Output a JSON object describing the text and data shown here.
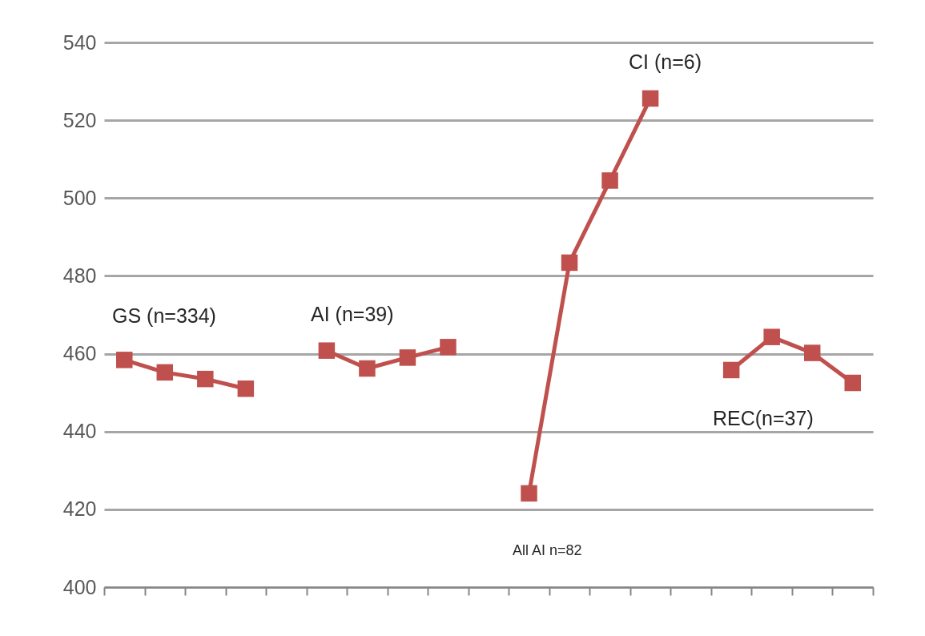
{
  "chart_data": {
    "type": "line",
    "categories": [
      null,
      null,
      null,
      null,
      null,
      null,
      null,
      null,
      null,
      null,
      null,
      null,
      null,
      null,
      null,
      null,
      null,
      null,
      null
    ],
    "series": [
      {
        "color": "#c0504d",
        "values": [
          458.4,
          455.2,
          453.5,
          451,
          null,
          460.8,
          456.2,
          459,
          461.7,
          null,
          424.1,
          483.4,
          504.5,
          525.6,
          null,
          455.8,
          464.3,
          460.2,
          452.5
        ]
      }
    ],
    "ylim": [
      400,
      540
    ],
    "yticks": [
      400,
      420,
      440,
      460,
      480,
      500,
      520,
      540
    ],
    "grid": "y",
    "legend": false,
    "marker": "square",
    "line_style": "solid",
    "tick_labels": "y",
    "annotations": [
      "GS (n=334)",
      "AI  (n=39)",
      "CI (n=6)",
      "All AI n=82",
      "REC(n=37)"
    ]
  }
}
